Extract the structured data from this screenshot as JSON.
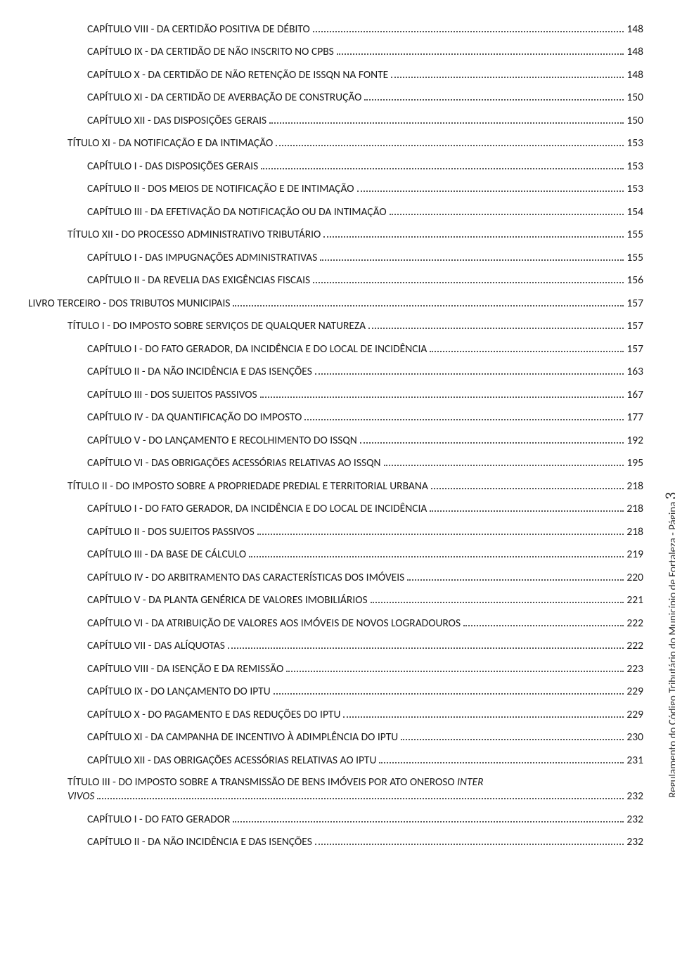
{
  "side_label": "Regulamento do Código Tributário do Município de Fortaleza - Página",
  "side_page_num": "3",
  "toc": [
    {
      "indent": 3,
      "title": "CAPÍTULO VIII - DA CERTIDÃO POSITIVA DE DÉBITO",
      "page": "148"
    },
    {
      "indent": 3,
      "title": "CAPÍTULO IX - DA CERTIDÃO DE NÃO INSCRITO NO CPBS",
      "page": "148"
    },
    {
      "indent": 3,
      "title": "CAPÍTULO X - DA CERTIDÃO DE NÃO RETENÇÃO DE ISSQN NA FONTE",
      "page": "148"
    },
    {
      "indent": 3,
      "title": "CAPÍTULO XI - DA CERTIDÃO DE AVERBAÇÃO DE CONSTRUÇÃO",
      "page": "150"
    },
    {
      "indent": 3,
      "title": "CAPÍTULO XII - DAS DISPOSIÇÕES GERAIS",
      "page": "150"
    },
    {
      "indent": 2,
      "title": "TÍTULO XI - DA NOTIFICAÇÃO E DA INTIMAÇÃO",
      "page": "153"
    },
    {
      "indent": 3,
      "title": "CAPÍTULO I - DAS DISPOSIÇÕES GERAIS",
      "page": "153"
    },
    {
      "indent": 3,
      "title": "CAPÍTULO II - DOS MEIOS DE NOTIFICAÇÃO E DE INTIMAÇÃO",
      "page": "153"
    },
    {
      "indent": 3,
      "title": "CAPÍTULO III - DA EFETIVAÇÃO DA NOTIFICAÇÃO OU DA INTIMAÇÃO",
      "page": "154"
    },
    {
      "indent": 2,
      "title": "TÍTULO XII - DO PROCESSO ADMINISTRATIVO TRIBUTÁRIO",
      "page": "155"
    },
    {
      "indent": 3,
      "title": "CAPÍTULO I - DAS IMPUGNAÇÕES ADMINISTRATIVAS",
      "page": "155"
    },
    {
      "indent": 3,
      "title": "CAPÍTULO II - DA REVELIA DAS EXIGÊNCIAS FISCAIS",
      "page": "156"
    },
    {
      "indent": 0,
      "title": "LIVRO TERCEIRO - DOS TRIBUTOS MUNICIPAIS",
      "page": "157"
    },
    {
      "indent": 2,
      "title": "TÍTULO I - DO IMPOSTO SOBRE SERVIÇOS DE QUALQUER NATUREZA",
      "page": "157"
    },
    {
      "indent": 3,
      "title": "CAPÍTULO I - DO FATO GERADOR, DA INCIDÊNCIA E DO LOCAL DE INCIDÊNCIA",
      "page": "157"
    },
    {
      "indent": 3,
      "title": "CAPÍTULO II - DA NÃO INCIDÊNCIA E DAS ISENÇÕES",
      "page": "163"
    },
    {
      "indent": 3,
      "title": "CAPÍTULO III - DOS SUJEITOS PASSIVOS",
      "page": "167"
    },
    {
      "indent": 3,
      "title": "CAPÍTULO IV - DA QUANTIFICAÇÃO DO IMPOSTO",
      "page": "177"
    },
    {
      "indent": 3,
      "title": "CAPÍTULO V - DO LANÇAMENTO E RECOLHIMENTO DO ISSQN",
      "page": "192"
    },
    {
      "indent": 3,
      "title": "CAPÍTULO VI - DAS OBRIGAÇÕES ACESSÓRIAS RELATIVAS AO ISSQN",
      "page": "195"
    },
    {
      "indent": 2,
      "title": "TÍTULO II - DO IMPOSTO SOBRE A PROPRIEDADE PREDIAL E TERRITORIAL URBANA",
      "page": "218"
    },
    {
      "indent": 3,
      "title": "CAPÍTULO I - DO FATO GERADOR, DA INCIDÊNCIA E DO LOCAL DE INCIDÊNCIA",
      "page": "218"
    },
    {
      "indent": 3,
      "title": "CAPÍTULO II - DOS SUJEITOS PASSIVOS",
      "page": "218"
    },
    {
      "indent": 3,
      "title": "CAPÍTULO III - DA BASE DE CÁLCULO",
      "page": "219"
    },
    {
      "indent": 3,
      "title": "CAPÍTULO IV - DO ARBITRAMENTO DAS CARACTERÍSTICAS DOS IMÓVEIS",
      "page": "220"
    },
    {
      "indent": 3,
      "title": "CAPÍTULO V - DA PLANTA GENÉRICA DE VALORES IMOBILIÁRIOS",
      "page": "221"
    },
    {
      "indent": 3,
      "title": "CAPÍTULO VI - DA ATRIBUIÇÃO DE VALORES AOS IMÓVEIS DE NOVOS LOGRADOUROS",
      "page": "222"
    },
    {
      "indent": 3,
      "title": "CAPÍTULO VII - DAS ALÍQUOTAS",
      "page": "222"
    },
    {
      "indent": 3,
      "title": "CAPÍTULO VIII - DA ISENÇÃO E DA REMISSÃO",
      "page": "223"
    },
    {
      "indent": 3,
      "title": "CAPÍTULO IX - DO LANÇAMENTO DO IPTU",
      "page": "229"
    },
    {
      "indent": 3,
      "title": "CAPÍTULO X - DO PAGAMENTO E DAS REDUÇÕES DO IPTU",
      "page": "229"
    },
    {
      "indent": 3,
      "title": "CAPÍTULO XI - DA CAMPANHA DE INCENTIVO À ADIMPLÊNCIA DO IPTU",
      "page": "230"
    },
    {
      "indent": 3,
      "title": "CAPÍTULO XII - DAS OBRIGAÇÕES ACESSÓRIAS RELATIVAS AO IPTU",
      "page": "231"
    },
    {
      "indent": 2,
      "title": "TÍTULO III - DO IMPOSTO SOBRE A TRANSMISSÃO DE BENS IMÓVEIS POR ATO ONEROSO ",
      "title_italic": "INTER VIVOS",
      "page": "232",
      "wrap": true
    },
    {
      "indent": 3,
      "title": "CAPÍTULO I - DO FATO GERADOR",
      "page": "232"
    },
    {
      "indent": 3,
      "title": "CAPÍTULO II - DA NÃO INCIDÊNCIA E DAS ISENÇÕES",
      "page": "232"
    }
  ],
  "style": {
    "font_size_pt": 12,
    "text_color": "#1a1a1a",
    "dot_color": "#555555",
    "background": "#ffffff"
  }
}
